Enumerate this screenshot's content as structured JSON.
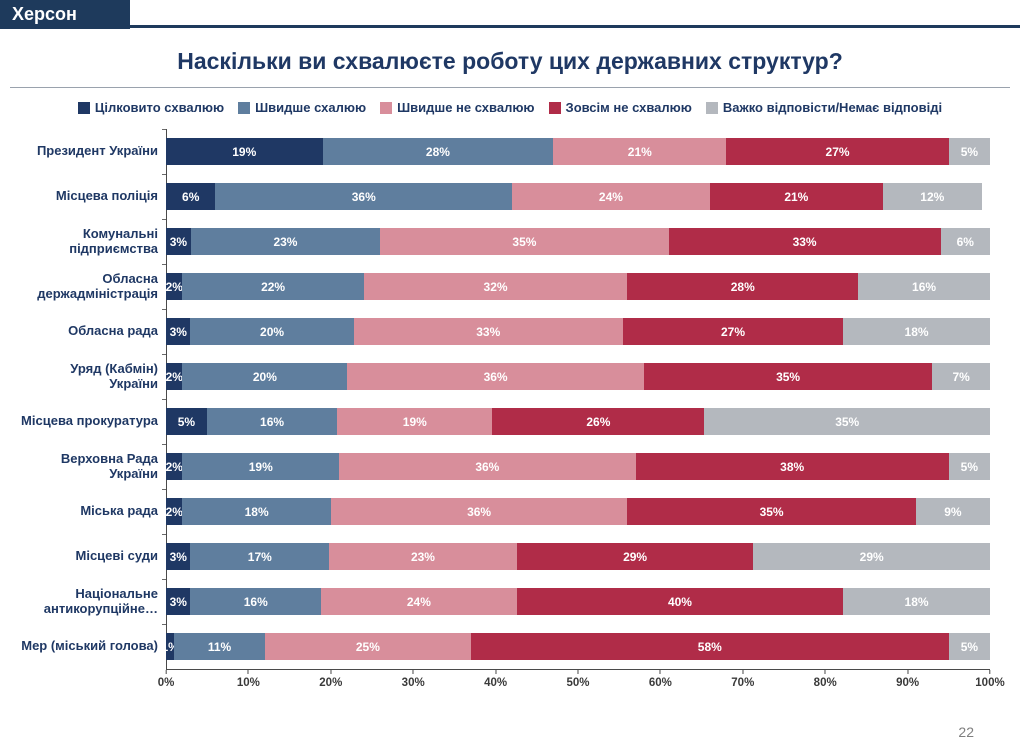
{
  "header": {
    "region_label": "Херсон"
  },
  "title": "Наскільки ви схвалюєте роботу цих державних структур?",
  "page_number": "22",
  "colors": {
    "header_bar": "#1e3a5c",
    "title_text": "#1f3864",
    "axis_line": "#4a4a4a"
  },
  "chart_data": {
    "type": "bar",
    "stacked": true,
    "orientation": "horizontal",
    "title": "Наскільки ви схвалюєте роботу цих державних структур?",
    "xlabel": "",
    "ylabel": "",
    "xlim": [
      0,
      100
    ],
    "grid": false,
    "legend_position": "top",
    "value_suffix": "%",
    "categories": [
      "Президент України",
      "Місцева поліція",
      "Комунальні підприємства",
      "Обласна держадміністрація",
      "Обласна рада",
      "Уряд (Кабмін) України",
      "Місцева прокуратура",
      "Верховна Рада України",
      "Міська рада",
      "Місцеві суди",
      "Національне антикорупційне…",
      "Мер (міський голова)"
    ],
    "series": [
      {
        "name": "Цілковито схвалюю",
        "color": "#1f3864",
        "values": [
          19,
          6,
          3,
          2,
          3,
          2,
          5,
          2,
          2,
          3,
          3,
          1
        ]
      },
      {
        "name": "Швидше схалюю",
        "color": "#5f7e9e",
        "values": [
          28,
          36,
          23,
          22,
          20,
          20,
          16,
          19,
          18,
          17,
          16,
          11
        ]
      },
      {
        "name": "Швидше не схвалюю",
        "color": "#d88e9b",
        "values": [
          21,
          24,
          35,
          32,
          33,
          36,
          19,
          36,
          36,
          23,
          24,
          25
        ]
      },
      {
        "name": "Зовсім не схвалюю",
        "color": "#b02c48",
        "values": [
          27,
          21,
          33,
          28,
          27,
          35,
          26,
          38,
          35,
          29,
          40,
          58
        ]
      },
      {
        "name": "Важко відповісти/Немає відповіді",
        "color": "#b4b8be",
        "values": [
          5,
          12,
          6,
          16,
          18,
          7,
          35,
          5,
          9,
          29,
          18,
          5
        ]
      }
    ],
    "x_ticks": [
      "0%",
      "10%",
      "20%",
      "30%",
      "40%",
      "50%",
      "60%",
      "70%",
      "80%",
      "90%",
      "100%"
    ]
  }
}
